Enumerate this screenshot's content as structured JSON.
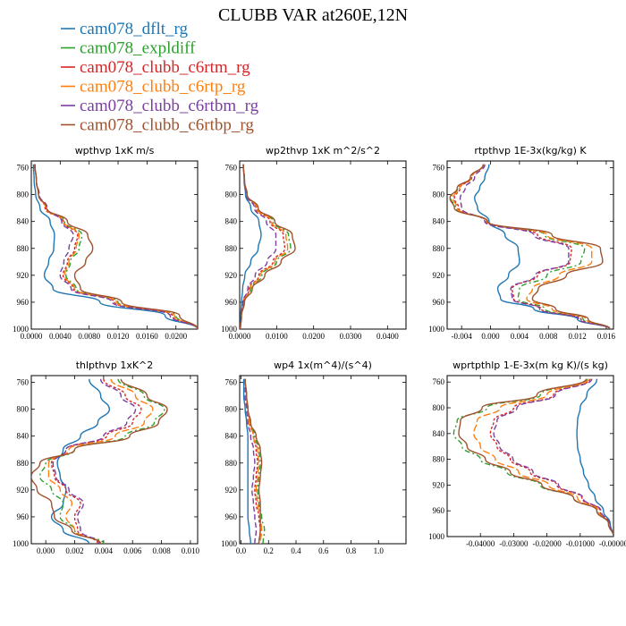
{
  "title": "CLUBB VAR at260E,12N",
  "legend": [
    {
      "name": "cam078_dflt_rg",
      "color": "#1f77b4",
      "dash": ""
    },
    {
      "name": "cam078_expldiff",
      "color": "#2ca02c",
      "dash": "6,3,2,3"
    },
    {
      "name": "cam078_clubb_c6rtm_rg",
      "color": "#d62728",
      "dash": "3,2"
    },
    {
      "name": "cam078_clubb_c6rtp_rg",
      "color": "#ff7f0e",
      "dash": "8,3"
    },
    {
      "name": "cam078_clubb_c6rtbm_rg",
      "color": "#7b3fa0",
      "dash": "6,3"
    },
    {
      "name": "cam078_clubb_c6rtbp_rg",
      "color": "#a0522d",
      "dash": ""
    }
  ],
  "chart_data": [
    {
      "type": "line",
      "title": "wpthvp  1xK m/s",
      "xlim": [
        0,
        0.023
      ],
      "xticks": [
        "0.0000",
        "0.0040",
        "0.0080",
        "0.0120",
        "0.0160",
        "0.0200"
      ],
      "xtick_values": [
        0,
        0.004,
        0.008,
        0.012,
        0.016,
        0.02
      ],
      "ylim": [
        1000,
        750
      ],
      "yticks": [
        "760",
        "800",
        "840",
        "880",
        "920",
        "960",
        "1000"
      ],
      "y": [
        755,
        780,
        800,
        820,
        840,
        860,
        880,
        900,
        920,
        940,
        960,
        980,
        1000
      ],
      "series": [
        {
          "values": [
            0.0003,
            0.0004,
            0.0006,
            0.0012,
            0.0026,
            0.0032,
            0.0031,
            0.0024,
            0.0018,
            0.003,
            0.0095,
            0.0185,
            0.023
          ]
        },
        {
          "values": [
            0.0005,
            0.0007,
            0.001,
            0.002,
            0.0046,
            0.007,
            0.0066,
            0.0054,
            0.0048,
            0.0062,
            0.012,
            0.02,
            0.023
          ]
        },
        {
          "values": [
            0.0005,
            0.0007,
            0.001,
            0.0019,
            0.0044,
            0.0064,
            0.006,
            0.005,
            0.0044,
            0.0058,
            0.0115,
            0.0195,
            0.023
          ]
        },
        {
          "values": [
            0.0005,
            0.0007,
            0.001,
            0.002,
            0.0045,
            0.0066,
            0.0062,
            0.0052,
            0.0046,
            0.006,
            0.0118,
            0.0198,
            0.023
          ]
        },
        {
          "values": [
            0.0005,
            0.0007,
            0.0011,
            0.0022,
            0.0042,
            0.0058,
            0.0052,
            0.0045,
            0.004,
            0.0055,
            0.0112,
            0.0192,
            0.023
          ]
        },
        {
          "values": [
            0.0005,
            0.0007,
            0.001,
            0.0021,
            0.005,
            0.0078,
            0.0085,
            0.0075,
            0.006,
            0.0068,
            0.0125,
            0.0205,
            0.023
          ]
        }
      ]
    },
    {
      "type": "line",
      "title": "wp2thvp  1xK m^2/s^2",
      "xlim": [
        0,
        0.045
      ],
      "xticks": [
        "0.0000",
        "0.0100",
        "0.0200",
        "0.0300",
        "0.0400"
      ],
      "xtick_values": [
        0,
        0.01,
        0.02,
        0.03,
        0.04
      ],
      "ylim": [
        1000,
        750
      ],
      "yticks": [
        "760",
        "800",
        "840",
        "880",
        "920",
        "960",
        "1000"
      ],
      "y": [
        755,
        780,
        800,
        820,
        840,
        860,
        880,
        900,
        920,
        940,
        960,
        980,
        1000
      ],
      "series": [
        {
          "values": [
            0.001,
            0.0012,
            0.0016,
            0.003,
            0.0052,
            0.0058,
            0.005,
            0.003,
            0.0014,
            0.0008,
            0.0005,
            0.0003,
            0.0002
          ]
        },
        {
          "values": [
            0.001,
            0.0013,
            0.002,
            0.0048,
            0.009,
            0.0132,
            0.0138,
            0.01,
            0.006,
            0.003,
            0.0012,
            0.0005,
            0.0002
          ]
        },
        {
          "values": [
            0.001,
            0.0013,
            0.0019,
            0.0044,
            0.0082,
            0.0118,
            0.0122,
            0.009,
            0.0052,
            0.0026,
            0.001,
            0.0004,
            0.0002
          ]
        },
        {
          "values": [
            0.001,
            0.0013,
            0.002,
            0.0046,
            0.0086,
            0.0125,
            0.013,
            0.0095,
            0.0056,
            0.0028,
            0.0011,
            0.0004,
            0.0002
          ]
        },
        {
          "values": [
            0.001,
            0.0013,
            0.0018,
            0.004,
            0.0072,
            0.0098,
            0.0098,
            0.0074,
            0.0042,
            0.0022,
            0.0009,
            0.0004,
            0.0002
          ]
        },
        {
          "values": [
            0.001,
            0.0013,
            0.002,
            0.005,
            0.0095,
            0.0142,
            0.015,
            0.0112,
            0.0068,
            0.0034,
            0.0013,
            0.0005,
            0.0002
          ]
        }
      ]
    },
    {
      "type": "line",
      "title": "rtpthvp  1E-3x(kg/kg) K",
      "xlim": [
        -0.006,
        0.017
      ],
      "xticks": [
        "-0.004",
        "0.000",
        "0.004",
        "0.008",
        "0.012",
        "0.016"
      ],
      "xtick_values": [
        -0.004,
        0,
        0.004,
        0.008,
        0.012,
        0.016
      ],
      "ylim": [
        1000,
        750
      ],
      "yticks": [
        "760",
        "800",
        "840",
        "880",
        "920",
        "960",
        "1000"
      ],
      "y": [
        755,
        775,
        790,
        805,
        820,
        840,
        860,
        880,
        900,
        920,
        940,
        955,
        970,
        985,
        1000
      ],
      "series": [
        {
          "values": [
            -0.0002,
            -0.0008,
            -0.0015,
            -0.0022,
            -0.0018,
            -0.0002,
            0.002,
            0.0038,
            0.004,
            0.0025,
            0.001,
            0.0014,
            0.006,
            0.012,
            0.0165
          ]
        },
        {
          "values": [
            -0.001,
            -0.0028,
            -0.0045,
            -0.0055,
            -0.0048,
            -0.0005,
            0.0075,
            0.013,
            0.0125,
            0.0078,
            0.004,
            0.0038,
            0.0075,
            0.0128,
            0.0165
          ]
        },
        {
          "values": [
            -0.001,
            -0.0026,
            -0.0042,
            -0.005,
            -0.0044,
            -0.0006,
            0.0065,
            0.0112,
            0.011,
            0.0065,
            0.003,
            0.0032,
            0.007,
            0.0125,
            0.0165
          ]
        },
        {
          "values": [
            -0.001,
            -0.0027,
            -0.0043,
            -0.0052,
            -0.0046,
            -0.0005,
            0.0078,
            0.014,
            0.014,
            0.0095,
            0.0058,
            0.005,
            0.0085,
            0.0132,
            0.0165
          ]
        },
        {
          "values": [
            -0.0008,
            -0.0022,
            -0.0035,
            -0.0042,
            -0.004,
            -0.0008,
            0.006,
            0.0108,
            0.0108,
            0.0062,
            0.0028,
            0.003,
            0.0068,
            0.0122,
            0.0165
          ]
        },
        {
          "values": [
            -0.001,
            -0.0028,
            -0.0046,
            -0.0056,
            -0.005,
            -0.0004,
            0.0085,
            0.0152,
            0.0155,
            0.0105,
            0.0066,
            0.0058,
            0.009,
            0.0135,
            0.0165
          ]
        }
      ]
    },
    {
      "type": "line",
      "title": "thlpthvp  1xK^2",
      "xlim": [
        -0.001,
        0.0105
      ],
      "xticks": [
        "0.000",
        "0.002",
        "0.004",
        "0.006",
        "0.008",
        "0.010"
      ],
      "xtick_values": [
        0,
        0.002,
        0.004,
        0.006,
        0.008,
        0.01
      ],
      "ylim": [
        1000,
        750
      ],
      "yticks": [
        "760",
        "800",
        "840",
        "880",
        "920",
        "960",
        "1000"
      ],
      "y": [
        755,
        780,
        800,
        820,
        840,
        860,
        880,
        900,
        920,
        940,
        960,
        980,
        1000
      ],
      "series": [
        {
          "values": [
            0.003,
            0.0038,
            0.0044,
            0.0036,
            0.0024,
            0.0012,
            0.0008,
            0.001,
            0.0014,
            0.0012,
            0.0004,
            0.0012,
            0.003
          ]
        },
        {
          "values": [
            0.005,
            0.0068,
            0.0082,
            0.0075,
            0.0055,
            0.002,
            0.0,
            -0.0004,
            0.0004,
            0.0012,
            0.001,
            0.002,
            0.004
          ]
        },
        {
          "values": [
            0.004,
            0.0055,
            0.0066,
            0.006,
            0.0042,
            0.0014,
            0.0004,
            0.0006,
            0.0014,
            0.0024,
            0.002,
            0.0022,
            0.0036
          ]
        },
        {
          "values": [
            0.0045,
            0.0062,
            0.0074,
            0.0068,
            0.0048,
            0.0016,
            0.0002,
            0.0002,
            0.001,
            0.0018,
            0.0014,
            0.002,
            0.0038
          ]
        },
        {
          "values": [
            0.0038,
            0.0052,
            0.0062,
            0.0056,
            0.004,
            0.0014,
            0.0005,
            0.0007,
            0.0016,
            0.0026,
            0.0022,
            0.0024,
            0.0037
          ]
        },
        {
          "values": [
            0.0052,
            0.007,
            0.0084,
            0.0078,
            0.0058,
            0.002,
            -0.0004,
            -0.001,
            -0.0006,
            0.0004,
            0.0006,
            0.0018,
            0.0038
          ]
        }
      ]
    },
    {
      "type": "line",
      "title": "wp4  1x(m^4)/(s^4)",
      "xlim": [
        -0.01,
        1.2
      ],
      "xticks": [
        "0.0",
        "0.2",
        "0.4",
        "0.6",
        "0.8",
        "1.0"
      ],
      "xtick_values": [
        0,
        0.2,
        0.4,
        0.6,
        0.8,
        1.0
      ],
      "ylim": [
        1000,
        750
      ],
      "yticks": [
        "760",
        "800",
        "840",
        "880",
        "920",
        "960",
        "1000"
      ],
      "y": [
        755,
        780,
        800,
        820,
        840,
        860,
        880,
        900,
        920,
        940,
        960,
        980,
        1000
      ],
      "series": [
        {
          "values": [
            0.02,
            0.02,
            0.03,
            0.04,
            0.05,
            0.05,
            0.05,
            0.05,
            0.05,
            0.05,
            0.05,
            0.06,
            0.07
          ]
        },
        {
          "values": [
            0.03,
            0.04,
            0.05,
            0.07,
            0.1,
            0.13,
            0.14,
            0.13,
            0.12,
            0.13,
            0.15,
            0.17,
            0.16
          ]
        },
        {
          "values": [
            0.03,
            0.04,
            0.05,
            0.06,
            0.09,
            0.11,
            0.12,
            0.11,
            0.1,
            0.11,
            0.13,
            0.14,
            0.13
          ]
        },
        {
          "values": [
            0.03,
            0.04,
            0.05,
            0.06,
            0.09,
            0.12,
            0.13,
            0.12,
            0.11,
            0.12,
            0.14,
            0.15,
            0.14
          ]
        },
        {
          "values": [
            0.03,
            0.03,
            0.04,
            0.05,
            0.07,
            0.09,
            0.1,
            0.09,
            0.08,
            0.09,
            0.1,
            0.11,
            0.1
          ]
        },
        {
          "values": [
            0.03,
            0.04,
            0.05,
            0.07,
            0.11,
            0.14,
            0.15,
            0.14,
            0.13,
            0.14,
            0.14,
            0.14,
            0.13
          ]
        }
      ]
    },
    {
      "type": "line",
      "title": "wprtpthlp  1-E-3x(m kg K)/(s kg)",
      "xlim": [
        -0.05,
        0.0
      ],
      "xticks": [
        "-0.04000",
        "-0.03000",
        "-0.02000",
        "-0.01000",
        "-0.00000"
      ],
      "xtick_values": [
        -0.04,
        -0.03,
        -0.02,
        -0.01,
        0.0
      ],
      "ylim": [
        1000,
        750
      ],
      "yticks": [
        "760",
        "800",
        "840",
        "880",
        "920",
        "960",
        "1000"
      ],
      "y": [
        755,
        780,
        800,
        820,
        840,
        860,
        880,
        900,
        920,
        940,
        960,
        980,
        1000
      ],
      "series": [
        {
          "values": [
            -0.005,
            -0.008,
            -0.01,
            -0.0108,
            -0.011,
            -0.0108,
            -0.01,
            -0.009,
            -0.0075,
            -0.0055,
            -0.003,
            -0.001,
            0.0
          ]
        },
        {
          "values": [
            -0.008,
            -0.022,
            -0.038,
            -0.047,
            -0.048,
            -0.0455,
            -0.04,
            -0.032,
            -0.022,
            -0.012,
            -0.005,
            -0.0015,
            0.0
          ]
        },
        {
          "values": [
            -0.007,
            -0.018,
            -0.03,
            -0.036,
            -0.037,
            -0.035,
            -0.031,
            -0.025,
            -0.017,
            -0.0095,
            -0.004,
            -0.0012,
            0.0
          ]
        },
        {
          "values": [
            -0.0075,
            -0.02,
            -0.034,
            -0.041,
            -0.042,
            -0.04,
            -0.0355,
            -0.0285,
            -0.0195,
            -0.0108,
            -0.0045,
            -0.0013,
            0.0
          ]
        },
        {
          "values": [
            -0.0065,
            -0.0175,
            -0.029,
            -0.035,
            -0.036,
            -0.0342,
            -0.0302,
            -0.0242,
            -0.0165,
            -0.0092,
            -0.0038,
            -0.0012,
            0.0
          ]
        },
        {
          "values": [
            -0.0082,
            -0.023,
            -0.0395,
            -0.046,
            -0.0465,
            -0.044,
            -0.0385,
            -0.031,
            -0.0215,
            -0.012,
            -0.005,
            -0.0015,
            0.0
          ]
        }
      ]
    }
  ]
}
